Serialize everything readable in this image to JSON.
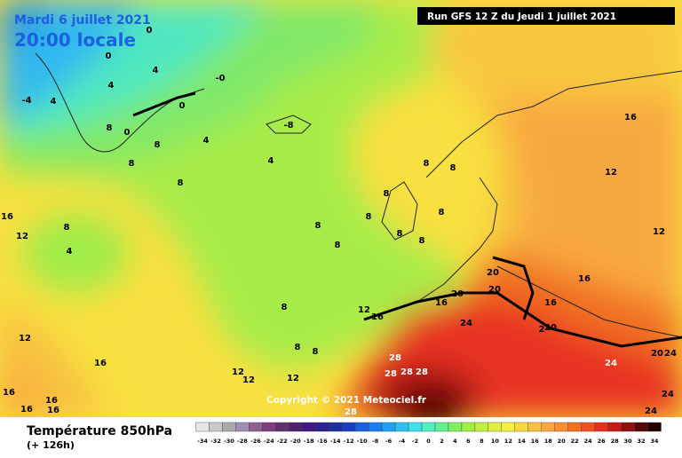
{
  "header": {
    "date": "Mardi 6 juillet 2021",
    "time": "20:00 locale",
    "run": "Run GFS 12 Z du Jeudi 1 juillet 2021"
  },
  "copyright": "Copyright © 2021 Meteociel.fr",
  "footer": {
    "title": "Température 850hPa",
    "lead": "(+ 126h)"
  },
  "legend": {
    "labels": [
      "-34",
      "-32",
      "-30",
      "-28",
      "-26",
      "-24",
      "-22",
      "-20",
      "-18",
      "-16",
      "-14",
      "-12",
      "-10",
      "-8",
      "-6",
      "-4",
      "-2",
      "0",
      "2",
      "4",
      "6",
      "8",
      "10",
      "12",
      "14",
      "16",
      "18",
      "20",
      "22",
      "24",
      "26",
      "28",
      "30",
      "32",
      "34"
    ],
    "colors": [
      "#e6e6e6",
      "#c8c8c8",
      "#aaaaaa",
      "#a090b0",
      "#906090",
      "#804080",
      "#603070",
      "#502070",
      "#401880",
      "#302090",
      "#2030a0",
      "#1a40c0",
      "#1a60e0",
      "#1a80f0",
      "#20a0f0",
      "#30c0f0",
      "#40e0f0",
      "#50f0c0",
      "#60f090",
      "#80f060",
      "#a0f040",
      "#c0f040",
      "#e0f040",
      "#f8f040",
      "#f8d840",
      "#f8c040",
      "#f8a840",
      "#f89030",
      "#f07020",
      "#f05020",
      "#e83020",
      "#c81818",
      "#901010",
      "#500808",
      "#200000"
    ]
  },
  "contour_labels": [
    "0",
    "0",
    "4",
    "4",
    "-4",
    "4",
    "-0",
    "0",
    "8",
    "0",
    "8",
    "4",
    "-8",
    "8",
    "4",
    "8",
    "16",
    "12",
    "8",
    "4",
    "8",
    "8",
    "8",
    "8",
    "8",
    "8",
    "8",
    "8",
    "8",
    "12",
    "16",
    "12",
    "16",
    "20",
    "20",
    "20",
    "16",
    "16",
    "16",
    "12",
    "8",
    "8",
    "8",
    "24",
    "20",
    "28",
    "28",
    "28",
    "28",
    "24",
    "20",
    "24",
    "24",
    "24",
    "12",
    "16",
    "12",
    "12",
    "12",
    "16",
    "16",
    "16",
    "16",
    "28",
    "2"
  ]
}
